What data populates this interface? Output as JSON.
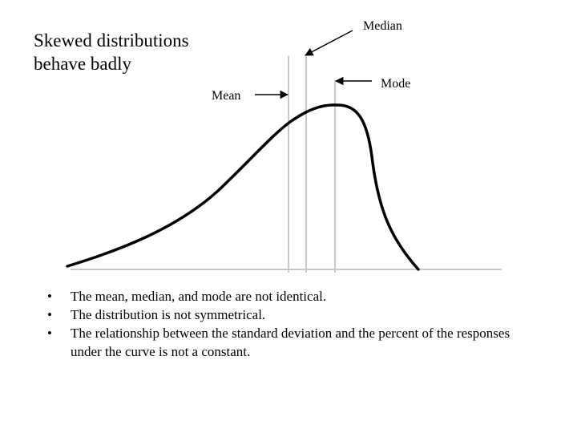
{
  "title": {
    "line1": "Skewed distributions",
    "line2": "behave badly"
  },
  "labels": {
    "median": "Median",
    "mode": "Mode",
    "mean": "Mean"
  },
  "bullets": [
    "The mean, median, and mode are not identical.",
    "The distribution is not symmetrical.",
    "The relationship between the standard deviation and the percent of the responses under the curve is not a constant."
  ],
  "colors": {
    "curve": "#000000",
    "marker_lines": "#c8c8c8",
    "baseline": "#c8c8c8",
    "arrows": "#000000"
  }
}
